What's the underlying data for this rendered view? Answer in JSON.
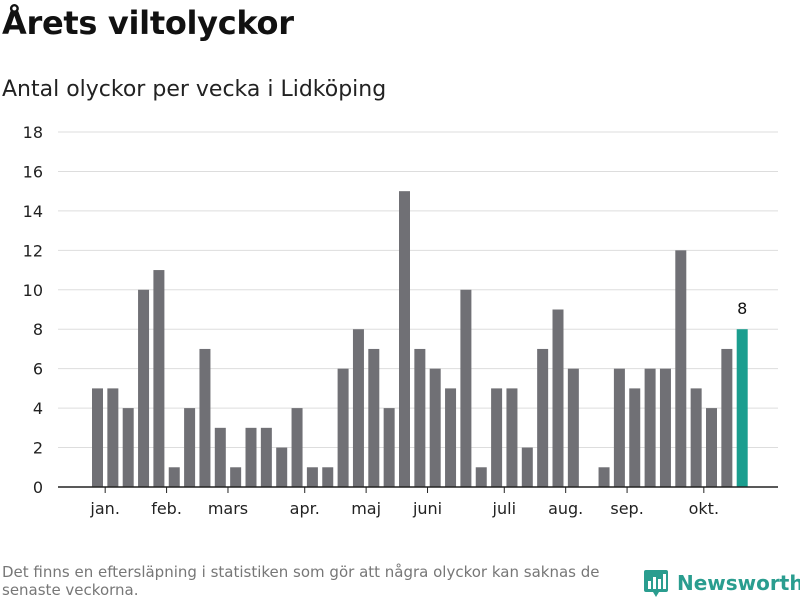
{
  "title": "Årets viltolyckor",
  "subtitle": "Antal olyckor per vecka i Lidköping",
  "footnote": "Det finns en eftersläpning i statistiken som gör att några olyckor kan saknas de senaste veckorna.",
  "brand": {
    "name": "Newsworthy",
    "icon": "newsworthy-logo-icon",
    "color": "#2a9d8f"
  },
  "chart_data": {
    "type": "bar",
    "title": "Antal olyckor per vecka i Lidköping",
    "xlabel": "",
    "ylabel": "",
    "ylim": [
      0,
      18
    ],
    "yticks": [
      0,
      2,
      4,
      6,
      8,
      10,
      12,
      14,
      16,
      18
    ],
    "grid": true,
    "bar_color": "#707075",
    "highlight_color": "#1a9e8f",
    "weeks": [
      1,
      2,
      3,
      4,
      5,
      6,
      7,
      8,
      9,
      10,
      11,
      12,
      13,
      14,
      15,
      16,
      17,
      18,
      19,
      20,
      21,
      22,
      23,
      24,
      25,
      26,
      27,
      28,
      29,
      30,
      31,
      32,
      33,
      34,
      35,
      36,
      37,
      38,
      39,
      40,
      41,
      42,
      43
    ],
    "values": [
      5,
      5,
      4,
      10,
      11,
      1,
      4,
      7,
      3,
      1,
      3,
      3,
      2,
      4,
      1,
      1,
      6,
      8,
      7,
      4,
      15,
      7,
      6,
      5,
      10,
      1,
      5,
      5,
      2,
      7,
      9,
      6,
      0,
      1,
      6,
      5,
      6,
      6,
      12,
      5,
      4,
      7,
      8
    ],
    "highlight_index": 42,
    "highlight_label": "8",
    "month_labels": [
      {
        "label": "jan.",
        "week": 1.5
      },
      {
        "label": "feb.",
        "week": 5.5
      },
      {
        "label": "mars",
        "week": 9.5
      },
      {
        "label": "apr.",
        "week": 14.5
      },
      {
        "label": "maj",
        "week": 18.5
      },
      {
        "label": "juni",
        "week": 22.5
      },
      {
        "label": "juli",
        "week": 27.5
      },
      {
        "label": "aug.",
        "week": 31.5
      },
      {
        "label": "sep.",
        "week": 35.5
      },
      {
        "label": "okt.",
        "week": 40.5
      }
    ]
  }
}
